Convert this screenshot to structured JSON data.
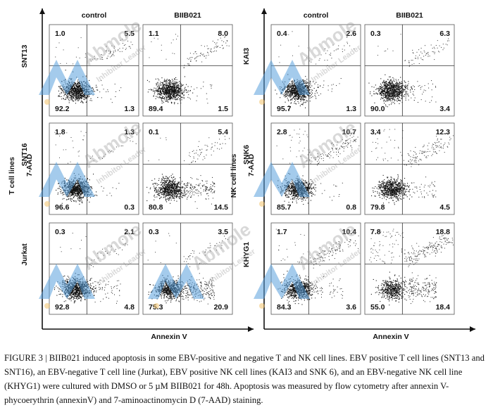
{
  "figure": {
    "panels": [
      {
        "id": "t-cells",
        "column_headers": [
          "control",
          "BIIB021"
        ],
        "y_axis_label": [
          "T cell lines",
          "7-AAD"
        ],
        "x_axis_label": "Annexin V",
        "rows": [
          {
            "cell_line": "SNT13",
            "plots": [
              {
                "q": [
                  "1.0",
                  "5.5",
                  "92.2",
                  "1.3"
                ]
              },
              {
                "q": [
                  "1.1",
                  "8.0",
                  "89.4",
                  "1.5"
                ]
              }
            ]
          },
          {
            "cell_line": "SNT16",
            "plots": [
              {
                "q": [
                  "1.8",
                  "1.3",
                  "96.6",
                  "0.3"
                ]
              },
              {
                "q": [
                  "0.1",
                  "5.4",
                  "80.8",
                  "14.5"
                ]
              }
            ]
          },
          {
            "cell_line": "Jurkat",
            "plots": [
              {
                "q": [
                  "0.3",
                  "2.1",
                  "92.8",
                  "4.8"
                ]
              },
              {
                "q": [
                  "0.3",
                  "3.5",
                  "75.3",
                  "20.9"
                ]
              }
            ]
          }
        ]
      },
      {
        "id": "nk-cells",
        "column_headers": [
          "control",
          "BIIB021"
        ],
        "y_axis_label": [
          "NK cell lines",
          "7-AAD"
        ],
        "x_axis_label": "Annexin V",
        "rows": [
          {
            "cell_line": "KAI3",
            "plots": [
              {
                "q": [
                  "0.4",
                  "2.6",
                  "95.7",
                  "1.3"
                ]
              },
              {
                "q": [
                  "0.3",
                  "6.3",
                  "90.0",
                  "3.4"
                ]
              }
            ]
          },
          {
            "cell_line": "SNK6",
            "plots": [
              {
                "q": [
                  "2.8",
                  "10.7",
                  "85.7",
                  "0.8"
                ]
              },
              {
                "q": [
                  "3.4",
                  "12.3",
                  "79.8",
                  "4.5"
                ]
              }
            ]
          },
          {
            "cell_line": "KHYG1",
            "plots": [
              {
                "q": [
                  "1.7",
                  "10.4",
                  "84.3",
                  "3.6"
                ]
              },
              {
                "q": [
                  "7.8",
                  "18.8",
                  "55.0",
                  "18.4"
                ]
              }
            ]
          }
        ]
      }
    ]
  },
  "watermark": {
    "brand": "Abmole",
    "tagline": "Inhibitor Leader"
  },
  "caption": "FIGURE 3 | BIIB021 induced apoptosis in some EBV-positive and negative T and NK cell lines. EBV positive T cell lines (SNT13 and SNT16), an EBV-negative T cell line (Jurkat), EBV positive NK cell lines (KAI3 and SNK 6), and an EBV-negative NK cell line (KHYG1) were cultured with DMSO or 5 µM BIIB021 for 48h. Apoptosis was measured by flow cytometry after annexin V-phycoerythrin (annexinV) and 7-aminoactinomycin D (7-AAD) staining."
}
